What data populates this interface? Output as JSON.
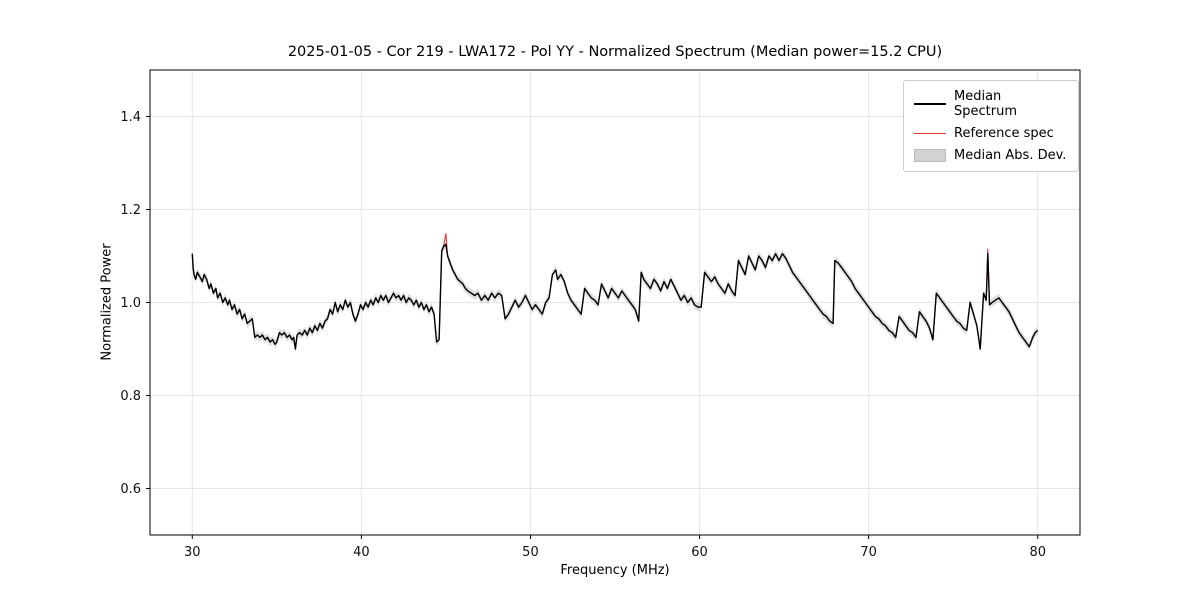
{
  "chart_data": {
    "type": "line",
    "title": "2025-01-05 - Cor 219 - LWA172 - Pol YY - Normalized Spectrum (Median power=15.2 CPU)",
    "xlabel": "Frequency (MHz)",
    "ylabel": "Normalized Power",
    "xlim": [
      27.5,
      82.5
    ],
    "ylim": [
      0.5,
      1.5
    ],
    "xticks": [
      30,
      40,
      50,
      60,
      70,
      80
    ],
    "xtick_labels": [
      "30",
      "40",
      "50",
      "60",
      "70",
      "80"
    ],
    "yticks": [
      0.6,
      0.8,
      1.0,
      1.2,
      1.4
    ],
    "ytick_labels": [
      "0.6",
      "0.8",
      "1.0",
      "1.2",
      "1.4"
    ],
    "grid": true,
    "legend_position": "upper right",
    "legend_entries": [
      {
        "label": "Median Spectrum",
        "type": "line",
        "color": "#000000"
      },
      {
        "label": "Reference spec",
        "type": "line",
        "color": "#e23b3b"
      },
      {
        "label": "Median Abs. Dev.",
        "type": "band",
        "color": "#d2d2d2"
      }
    ],
    "mad_halfwidth": 0.009,
    "colors": {
      "median": "#000000",
      "reference": "#e23b3b",
      "band": "#c8c8c8"
    },
    "median": [
      [
        30.0,
        1.105
      ],
      [
        30.05,
        1.075
      ],
      [
        30.1,
        1.06
      ],
      [
        30.2,
        1.05
      ],
      [
        30.3,
        1.065
      ],
      [
        30.45,
        1.055
      ],
      [
        30.6,
        1.045
      ],
      [
        30.7,
        1.06
      ],
      [
        30.85,
        1.05
      ],
      [
        31.0,
        1.03
      ],
      [
        31.1,
        1.04
      ],
      [
        31.25,
        1.02
      ],
      [
        31.4,
        1.03
      ],
      [
        31.5,
        1.01
      ],
      [
        31.65,
        1.02
      ],
      [
        31.8,
        1.0
      ],
      [
        31.95,
        1.01
      ],
      [
        32.1,
        0.995
      ],
      [
        32.2,
        1.005
      ],
      [
        32.35,
        0.985
      ],
      [
        32.5,
        0.995
      ],
      [
        32.65,
        0.975
      ],
      [
        32.8,
        0.985
      ],
      [
        32.95,
        0.965
      ],
      [
        33.1,
        0.975
      ],
      [
        33.25,
        0.955
      ],
      [
        33.4,
        0.96
      ],
      [
        33.55,
        0.965
      ],
      [
        33.7,
        0.925
      ],
      [
        33.85,
        0.93
      ],
      [
        34.0,
        0.925
      ],
      [
        34.15,
        0.93
      ],
      [
        34.3,
        0.92
      ],
      [
        34.45,
        0.925
      ],
      [
        34.6,
        0.915
      ],
      [
        34.75,
        0.92
      ],
      [
        34.9,
        0.91
      ],
      [
        35.0,
        0.915
      ],
      [
        35.15,
        0.935
      ],
      [
        35.3,
        0.93
      ],
      [
        35.45,
        0.935
      ],
      [
        35.6,
        0.925
      ],
      [
        35.75,
        0.93
      ],
      [
        35.9,
        0.92
      ],
      [
        36.0,
        0.925
      ],
      [
        36.1,
        0.9
      ],
      [
        36.2,
        0.93
      ],
      [
        36.35,
        0.935
      ],
      [
        36.5,
        0.93
      ],
      [
        36.65,
        0.94
      ],
      [
        36.8,
        0.93
      ],
      [
        36.95,
        0.945
      ],
      [
        37.1,
        0.935
      ],
      [
        37.25,
        0.95
      ],
      [
        37.4,
        0.94
      ],
      [
        37.55,
        0.955
      ],
      [
        37.7,
        0.945
      ],
      [
        37.85,
        0.96
      ],
      [
        38.0,
        0.965
      ],
      [
        38.15,
        0.985
      ],
      [
        38.3,
        0.975
      ],
      [
        38.45,
        1.0
      ],
      [
        38.6,
        0.98
      ],
      [
        38.75,
        0.995
      ],
      [
        38.9,
        0.985
      ],
      [
        39.05,
        1.005
      ],
      [
        39.2,
        0.99
      ],
      [
        39.35,
        1.0
      ],
      [
        39.5,
        0.975
      ],
      [
        39.65,
        0.96
      ],
      [
        39.8,
        0.975
      ],
      [
        39.95,
        0.995
      ],
      [
        40.1,
        0.985
      ],
      [
        40.25,
        1.0
      ],
      [
        40.4,
        0.99
      ],
      [
        40.55,
        1.005
      ],
      [
        40.7,
        0.995
      ],
      [
        40.85,
        1.01
      ],
      [
        41.0,
        1.0
      ],
      [
        41.15,
        1.015
      ],
      [
        41.3,
        1.005
      ],
      [
        41.45,
        1.015
      ],
      [
        41.6,
        1.0
      ],
      [
        41.75,
        1.01
      ],
      [
        41.9,
        1.02
      ],
      [
        42.05,
        1.01
      ],
      [
        42.2,
        1.015
      ],
      [
        42.35,
        1.005
      ],
      [
        42.5,
        1.015
      ],
      [
        42.65,
        1.0
      ],
      [
        42.8,
        1.01
      ],
      [
        42.95,
        1.005
      ],
      [
        43.1,
        0.995
      ],
      [
        43.25,
        1.005
      ],
      [
        43.4,
        0.99
      ],
      [
        43.55,
        1.0
      ],
      [
        43.7,
        0.985
      ],
      [
        43.85,
        0.995
      ],
      [
        44.0,
        0.98
      ],
      [
        44.15,
        0.99
      ],
      [
        44.3,
        0.975
      ],
      [
        44.45,
        0.915
      ],
      [
        44.6,
        0.92
      ],
      [
        44.75,
        1.11
      ],
      [
        44.85,
        1.12
      ],
      [
        45.0,
        1.125
      ],
      [
        45.1,
        1.1
      ],
      [
        45.25,
        1.085
      ],
      [
        45.4,
        1.07
      ],
      [
        45.55,
        1.06
      ],
      [
        45.7,
        1.05
      ],
      [
        45.85,
        1.045
      ],
      [
        46.0,
        1.04
      ],
      [
        46.15,
        1.03
      ],
      [
        46.3,
        1.025
      ],
      [
        46.5,
        1.02
      ],
      [
        46.7,
        1.015
      ],
      [
        46.9,
        1.02
      ],
      [
        47.1,
        1.005
      ],
      [
        47.3,
        1.015
      ],
      [
        47.5,
        1.005
      ],
      [
        47.7,
        1.02
      ],
      [
        47.9,
        1.01
      ],
      [
        48.1,
        1.02
      ],
      [
        48.3,
        1.015
      ],
      [
        48.5,
        0.965
      ],
      [
        48.7,
        0.975
      ],
      [
        48.9,
        0.99
      ],
      [
        49.1,
        1.005
      ],
      [
        49.3,
        0.99
      ],
      [
        49.5,
        1.0
      ],
      [
        49.7,
        1.015
      ],
      [
        49.9,
        1.0
      ],
      [
        50.1,
        0.985
      ],
      [
        50.3,
        0.995
      ],
      [
        50.5,
        0.985
      ],
      [
        50.7,
        0.975
      ],
      [
        50.9,
        1.0
      ],
      [
        51.1,
        1.01
      ],
      [
        51.3,
        1.06
      ],
      [
        51.5,
        1.07
      ],
      [
        51.6,
        1.05
      ],
      [
        51.8,
        1.06
      ],
      [
        52.0,
        1.045
      ],
      [
        52.2,
        1.02
      ],
      [
        52.4,
        1.005
      ],
      [
        52.6,
        0.995
      ],
      [
        52.8,
        0.985
      ],
      [
        53.0,
        0.975
      ],
      [
        53.2,
        1.03
      ],
      [
        53.4,
        1.02
      ],
      [
        53.6,
        1.01
      ],
      [
        53.8,
        1.005
      ],
      [
        54.0,
        0.995
      ],
      [
        54.2,
        1.04
      ],
      [
        54.4,
        1.025
      ],
      [
        54.6,
        1.01
      ],
      [
        54.8,
        1.03
      ],
      [
        55.0,
        1.02
      ],
      [
        55.2,
        1.01
      ],
      [
        55.4,
        1.025
      ],
      [
        55.6,
        1.015
      ],
      [
        55.8,
        1.005
      ],
      [
        56.0,
        0.995
      ],
      [
        56.2,
        0.985
      ],
      [
        56.4,
        0.96
      ],
      [
        56.55,
        1.065
      ],
      [
        56.7,
        1.05
      ],
      [
        56.9,
        1.04
      ],
      [
        57.1,
        1.03
      ],
      [
        57.3,
        1.05
      ],
      [
        57.5,
        1.04
      ],
      [
        57.7,
        1.025
      ],
      [
        57.9,
        1.045
      ],
      [
        58.1,
        1.03
      ],
      [
        58.3,
        1.05
      ],
      [
        58.5,
        1.035
      ],
      [
        58.7,
        1.02
      ],
      [
        58.9,
        1.005
      ],
      [
        59.1,
        1.015
      ],
      [
        59.3,
        1.0
      ],
      [
        59.5,
        1.01
      ],
      [
        59.7,
        0.995
      ],
      [
        59.9,
        0.99
      ],
      [
        60.1,
        0.99
      ],
      [
        60.3,
        1.065
      ],
      [
        60.5,
        1.055
      ],
      [
        60.7,
        1.045
      ],
      [
        60.9,
        1.055
      ],
      [
        61.1,
        1.04
      ],
      [
        61.3,
        1.03
      ],
      [
        61.5,
        1.02
      ],
      [
        61.7,
        1.04
      ],
      [
        61.9,
        1.025
      ],
      [
        62.1,
        1.015
      ],
      [
        62.3,
        1.09
      ],
      [
        62.5,
        1.075
      ],
      [
        62.7,
        1.06
      ],
      [
        62.9,
        1.1
      ],
      [
        63.1,
        1.085
      ],
      [
        63.3,
        1.07
      ],
      [
        63.5,
        1.1
      ],
      [
        63.7,
        1.09
      ],
      [
        63.9,
        1.075
      ],
      [
        64.1,
        1.1
      ],
      [
        64.3,
        1.09
      ],
      [
        64.5,
        1.105
      ],
      [
        64.7,
        1.09
      ],
      [
        64.9,
        1.105
      ],
      [
        65.1,
        1.095
      ],
      [
        65.3,
        1.08
      ],
      [
        65.5,
        1.065
      ],
      [
        65.7,
        1.055
      ],
      [
        65.9,
        1.045
      ],
      [
        66.1,
        1.035
      ],
      [
        66.3,
        1.025
      ],
      [
        66.5,
        1.015
      ],
      [
        66.7,
        1.005
      ],
      [
        66.9,
        0.995
      ],
      [
        67.1,
        0.985
      ],
      [
        67.3,
        0.975
      ],
      [
        67.5,
        0.97
      ],
      [
        67.7,
        0.96
      ],
      [
        67.9,
        0.955
      ],
      [
        68.0,
        1.09
      ],
      [
        68.2,
        1.085
      ],
      [
        68.4,
        1.075
      ],
      [
        68.6,
        1.065
      ],
      [
        68.8,
        1.055
      ],
      [
        69.0,
        1.045
      ],
      [
        69.2,
        1.03
      ],
      [
        69.4,
        1.02
      ],
      [
        69.6,
        1.01
      ],
      [
        69.8,
        1.0
      ],
      [
        70.0,
        0.99
      ],
      [
        70.2,
        0.98
      ],
      [
        70.4,
        0.97
      ],
      [
        70.6,
        0.965
      ],
      [
        70.8,
        0.955
      ],
      [
        71.0,
        0.95
      ],
      [
        71.2,
        0.94
      ],
      [
        71.4,
        0.935
      ],
      [
        71.6,
        0.925
      ],
      [
        71.8,
        0.97
      ],
      [
        72.0,
        0.96
      ],
      [
        72.2,
        0.95
      ],
      [
        72.4,
        0.94
      ],
      [
        72.6,
        0.935
      ],
      [
        72.8,
        0.925
      ],
      [
        73.0,
        0.98
      ],
      [
        73.2,
        0.97
      ],
      [
        73.4,
        0.96
      ],
      [
        73.6,
        0.945
      ],
      [
        73.8,
        0.92
      ],
      [
        74.0,
        1.02
      ],
      [
        74.2,
        1.01
      ],
      [
        74.4,
        1.0
      ],
      [
        74.6,
        0.99
      ],
      [
        74.8,
        0.98
      ],
      [
        75.0,
        0.97
      ],
      [
        75.2,
        0.96
      ],
      [
        75.4,
        0.955
      ],
      [
        75.6,
        0.945
      ],
      [
        75.8,
        0.94
      ],
      [
        76.0,
        1.0
      ],
      [
        76.2,
        0.975
      ],
      [
        76.4,
        0.95
      ],
      [
        76.6,
        0.9
      ],
      [
        76.8,
        1.02
      ],
      [
        76.95,
        1.005
      ],
      [
        77.05,
        1.105
      ],
      [
        77.15,
        0.995
      ],
      [
        77.3,
        1.0
      ],
      [
        77.5,
        1.005
      ],
      [
        77.7,
        1.01
      ],
      [
        77.9,
        1.0
      ],
      [
        78.1,
        0.99
      ],
      [
        78.3,
        0.98
      ],
      [
        78.5,
        0.965
      ],
      [
        78.7,
        0.95
      ],
      [
        78.9,
        0.935
      ],
      [
        79.1,
        0.925
      ],
      [
        79.3,
        0.915
      ],
      [
        79.5,
        0.905
      ],
      [
        79.7,
        0.925
      ],
      [
        79.85,
        0.935
      ],
      [
        80.0,
        0.94
      ]
    ],
    "reference_overrides": [
      [
        45.0,
        1.148
      ],
      [
        77.05,
        1.115
      ]
    ]
  }
}
